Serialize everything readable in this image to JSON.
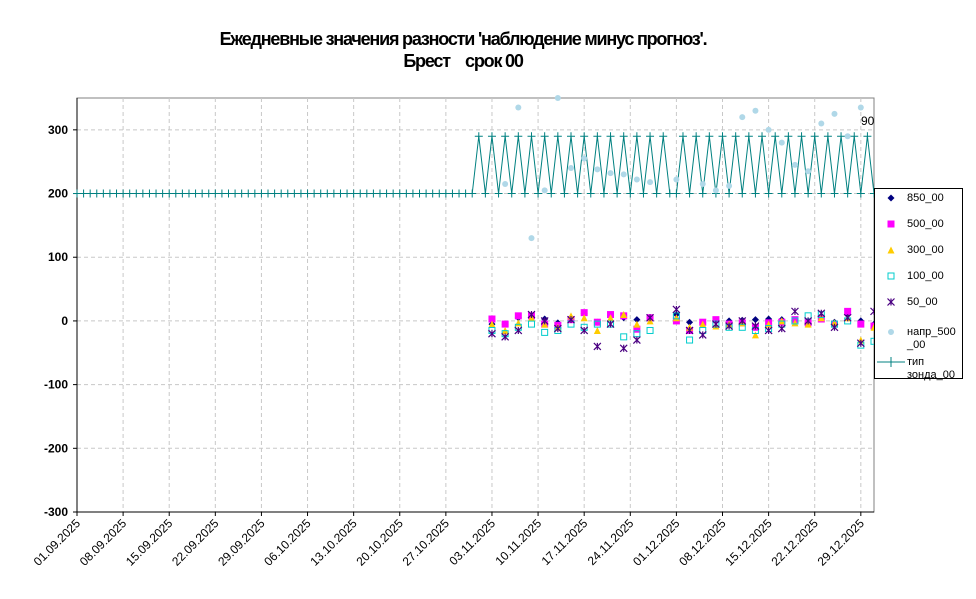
{
  "title": {
    "line1": "Ежедневные значения разности 'наблюдение минус прогноз'.",
    "line2": "Брест    срок 00"
  },
  "annotation": "90",
  "chart_data": {
    "type": "scatter",
    "title": "Ежедневные значения разности 'наблюдение минус прогноз'. Брест срок 00",
    "ylim": [
      -300,
      350
    ],
    "yticks": [
      -300,
      -200,
      -100,
      0,
      100,
      200,
      300
    ],
    "xlim": [
      "2025-09-01",
      "2025-12-31"
    ],
    "xtick_labels": [
      "01.09.2025",
      "08.09.2025",
      "15.09.2025",
      "22.09.2025",
      "29.09.2025",
      "06.10.2025",
      "13.10.2025",
      "20.10.2025",
      "27.10.2025",
      "03.11.2025",
      "10.11.2025",
      "17.11.2025",
      "24.11.2025",
      "01.12.2025",
      "08.12.2025",
      "15.12.2025",
      "22.12.2025",
      "29.12.2025"
    ],
    "grid": true,
    "legend_position": "right",
    "series": [
      {
        "name": "850_00",
        "color": "#000080",
        "marker": "diamond",
        "points": [
          [
            "2025-11-03",
            -5
          ],
          [
            "2025-11-05",
            -5
          ],
          [
            "2025-11-07",
            5
          ],
          [
            "2025-11-09",
            5
          ],
          [
            "2025-11-11",
            3
          ],
          [
            "2025-11-13",
            -3
          ],
          [
            "2025-11-15",
            5
          ],
          [
            "2025-11-17",
            12
          ],
          [
            "2025-11-19",
            -2
          ],
          [
            "2025-11-21",
            8
          ],
          [
            "2025-11-23",
            5
          ],
          [
            "2025-11-25",
            2
          ],
          [
            "2025-11-27",
            3
          ],
          [
            "2025-12-01",
            10
          ],
          [
            "2025-12-03",
            -2
          ],
          [
            "2025-12-05",
            -3
          ],
          [
            "2025-12-07",
            0
          ],
          [
            "2025-12-09",
            0
          ],
          [
            "2025-12-11",
            1
          ],
          [
            "2025-12-13",
            2
          ],
          [
            "2025-12-15",
            3
          ],
          [
            "2025-12-17",
            2
          ],
          [
            "2025-12-19",
            0
          ],
          [
            "2025-12-21",
            -2
          ],
          [
            "2025-12-23",
            5
          ],
          [
            "2025-12-25",
            -2
          ],
          [
            "2025-12-27",
            10
          ],
          [
            "2025-12-29",
            0
          ],
          [
            "2025-12-31",
            -5
          ]
        ]
      },
      {
        "name": "500_00",
        "color": "#ff00ff",
        "marker": "square",
        "points": [
          [
            "2025-11-03",
            3
          ],
          [
            "2025-11-05",
            -5
          ],
          [
            "2025-11-07",
            8
          ],
          [
            "2025-11-09",
            8
          ],
          [
            "2025-11-11",
            -5
          ],
          [
            "2025-11-13",
            -7
          ],
          [
            "2025-11-15",
            2
          ],
          [
            "2025-11-17",
            13
          ],
          [
            "2025-11-19",
            -2
          ],
          [
            "2025-11-21",
            10
          ],
          [
            "2025-11-23",
            8
          ],
          [
            "2025-11-25",
            -13
          ],
          [
            "2025-11-27",
            5
          ],
          [
            "2025-12-01",
            0
          ],
          [
            "2025-12-03",
            -15
          ],
          [
            "2025-12-05",
            -2
          ],
          [
            "2025-12-07",
            2
          ],
          [
            "2025-12-09",
            -5
          ],
          [
            "2025-12-11",
            -3
          ],
          [
            "2025-12-13",
            -10
          ],
          [
            "2025-12-15",
            -3
          ],
          [
            "2025-12-17",
            -2
          ],
          [
            "2025-12-19",
            2
          ],
          [
            "2025-12-21",
            -3
          ],
          [
            "2025-12-23",
            3
          ],
          [
            "2025-12-25",
            -5
          ],
          [
            "2025-12-27",
            15
          ],
          [
            "2025-12-29",
            -5
          ],
          [
            "2025-12-31",
            -8
          ]
        ]
      },
      {
        "name": "300_00",
        "color": "#ffcc00",
        "marker": "triangle",
        "points": [
          [
            "2025-11-03",
            -5
          ],
          [
            "2025-11-05",
            -15
          ],
          [
            "2025-11-07",
            -3
          ],
          [
            "2025-11-09",
            5
          ],
          [
            "2025-11-11",
            -5
          ],
          [
            "2025-11-13",
            -10
          ],
          [
            "2025-11-15",
            8
          ],
          [
            "2025-11-17",
            5
          ],
          [
            "2025-11-19",
            -15
          ],
          [
            "2025-11-21",
            5
          ],
          [
            "2025-11-23",
            10
          ],
          [
            "2025-11-25",
            -5
          ],
          [
            "2025-11-27",
            0
          ],
          [
            "2025-12-01",
            5
          ],
          [
            "2025-12-03",
            -10
          ],
          [
            "2025-12-05",
            -5
          ],
          [
            "2025-12-07",
            -8
          ],
          [
            "2025-12-09",
            -5
          ],
          [
            "2025-12-11",
            -3
          ],
          [
            "2025-12-13",
            -22
          ],
          [
            "2025-12-15",
            -5
          ],
          [
            "2025-12-17",
            0
          ],
          [
            "2025-12-19",
            -3
          ],
          [
            "2025-12-21",
            -5
          ],
          [
            "2025-12-23",
            5
          ],
          [
            "2025-12-25",
            -3
          ],
          [
            "2025-12-27",
            5
          ],
          [
            "2025-12-29",
            -30
          ],
          [
            "2025-12-31",
            -10
          ]
        ]
      },
      {
        "name": "100_00",
        "color": "#00cccc",
        "marker": "square-open",
        "points": [
          [
            "2025-11-03",
            -15
          ],
          [
            "2025-11-05",
            -20
          ],
          [
            "2025-11-07",
            -10
          ],
          [
            "2025-11-09",
            -5
          ],
          [
            "2025-11-11",
            -18
          ],
          [
            "2025-11-13",
            -15
          ],
          [
            "2025-11-15",
            -5
          ],
          [
            "2025-11-17",
            -10
          ],
          [
            "2025-11-19",
            -5
          ],
          [
            "2025-11-21",
            -5
          ],
          [
            "2025-11-23",
            -25
          ],
          [
            "2025-11-25",
            -20
          ],
          [
            "2025-11-27",
            -15
          ],
          [
            "2025-12-01",
            8
          ],
          [
            "2025-12-03",
            -30
          ],
          [
            "2025-12-05",
            -15
          ],
          [
            "2025-12-07",
            -5
          ],
          [
            "2025-12-09",
            -10
          ],
          [
            "2025-12-11",
            -10
          ],
          [
            "2025-12-13",
            -15
          ],
          [
            "2025-12-15",
            -12
          ],
          [
            "2025-12-17",
            -5
          ],
          [
            "2025-12-19",
            0
          ],
          [
            "2025-12-21",
            8
          ],
          [
            "2025-12-23",
            10
          ],
          [
            "2025-12-25",
            -5
          ],
          [
            "2025-12-27",
            0
          ],
          [
            "2025-12-29",
            -38
          ],
          [
            "2025-12-31",
            -32
          ]
        ]
      },
      {
        "name": "50_00",
        "color": "#4b0082",
        "marker": "star",
        "points": [
          [
            "2025-11-03",
            -20
          ],
          [
            "2025-11-05",
            -25
          ],
          [
            "2025-11-07",
            -15
          ],
          [
            "2025-11-09",
            10
          ],
          [
            "2025-11-11",
            0
          ],
          [
            "2025-11-13",
            -12
          ],
          [
            "2025-11-15",
            2
          ],
          [
            "2025-11-17",
            -15
          ],
          [
            "2025-11-19",
            -40
          ],
          [
            "2025-11-21",
            -5
          ],
          [
            "2025-11-23",
            -43
          ],
          [
            "2025-11-25",
            -30
          ],
          [
            "2025-11-27",
            5
          ],
          [
            "2025-12-01",
            18
          ],
          [
            "2025-12-03",
            -15
          ],
          [
            "2025-12-05",
            -22
          ],
          [
            "2025-12-07",
            -5
          ],
          [
            "2025-12-09",
            -8
          ],
          [
            "2025-12-11",
            0
          ],
          [
            "2025-12-13",
            -8
          ],
          [
            "2025-12-15",
            -15
          ],
          [
            "2025-12-17",
            -12
          ],
          [
            "2025-12-19",
            15
          ],
          [
            "2025-12-21",
            0
          ],
          [
            "2025-12-23",
            12
          ],
          [
            "2025-12-25",
            -10
          ],
          [
            "2025-12-27",
            5
          ],
          [
            "2025-12-29",
            -35
          ],
          [
            "2025-12-31",
            15
          ]
        ]
      },
      {
        "name": "напр_500_00",
        "color": "#b0d8e8",
        "marker": "circle",
        "points": [
          [
            "2025-11-05",
            215
          ],
          [
            "2025-11-07",
            335
          ],
          [
            "2025-11-09",
            130
          ],
          [
            "2025-11-11",
            205
          ],
          [
            "2025-11-13",
            350
          ],
          [
            "2025-11-15",
            240
          ],
          [
            "2025-11-17",
            255
          ],
          [
            "2025-11-19",
            238
          ],
          [
            "2025-11-21",
            232
          ],
          [
            "2025-11-23",
            230
          ],
          [
            "2025-11-25",
            222
          ],
          [
            "2025-11-27",
            218
          ],
          [
            "2025-12-01",
            222
          ],
          [
            "2025-12-05",
            215
          ],
          [
            "2025-12-07",
            205
          ],
          [
            "2025-12-09",
            212
          ],
          [
            "2025-12-11",
            320
          ],
          [
            "2025-12-13",
            330
          ],
          [
            "2025-12-15",
            300
          ],
          [
            "2025-12-17",
            280
          ],
          [
            "2025-12-19",
            245
          ],
          [
            "2025-12-21",
            235
          ],
          [
            "2025-12-23",
            310
          ],
          [
            "2025-12-25",
            325
          ],
          [
            "2025-12-27",
            290
          ],
          [
            "2025-12-29",
            335
          ]
        ]
      },
      {
        "name": "тип зонда_00",
        "color": "#008080",
        "marker": "plus",
        "alternating": {
          "start": "2025-11-01",
          "high": 290,
          "low": 200,
          "gaps": [
            "2025-11-30",
            "2025-12-01"
          ]
        },
        "baseline": 200
      }
    ]
  },
  "legend": {
    "items": [
      {
        "label": "850_00",
        "marker": "diamond",
        "color": "#000080"
      },
      {
        "label": "500_00",
        "marker": "square",
        "color": "#ff00ff"
      },
      {
        "label": "300_00",
        "marker": "triangle",
        "color": "#ffcc00"
      },
      {
        "label": "100_00",
        "marker": "square-open",
        "color": "#00cccc"
      },
      {
        "label": "50_00",
        "marker": "star",
        "color": "#4b0082"
      },
      {
        "label": "напр_500\n_00",
        "marker": "circle",
        "color": "#b0d8e8"
      },
      {
        "label": "тип\nзонда_00",
        "marker": "plus",
        "color": "#008080"
      }
    ]
  }
}
